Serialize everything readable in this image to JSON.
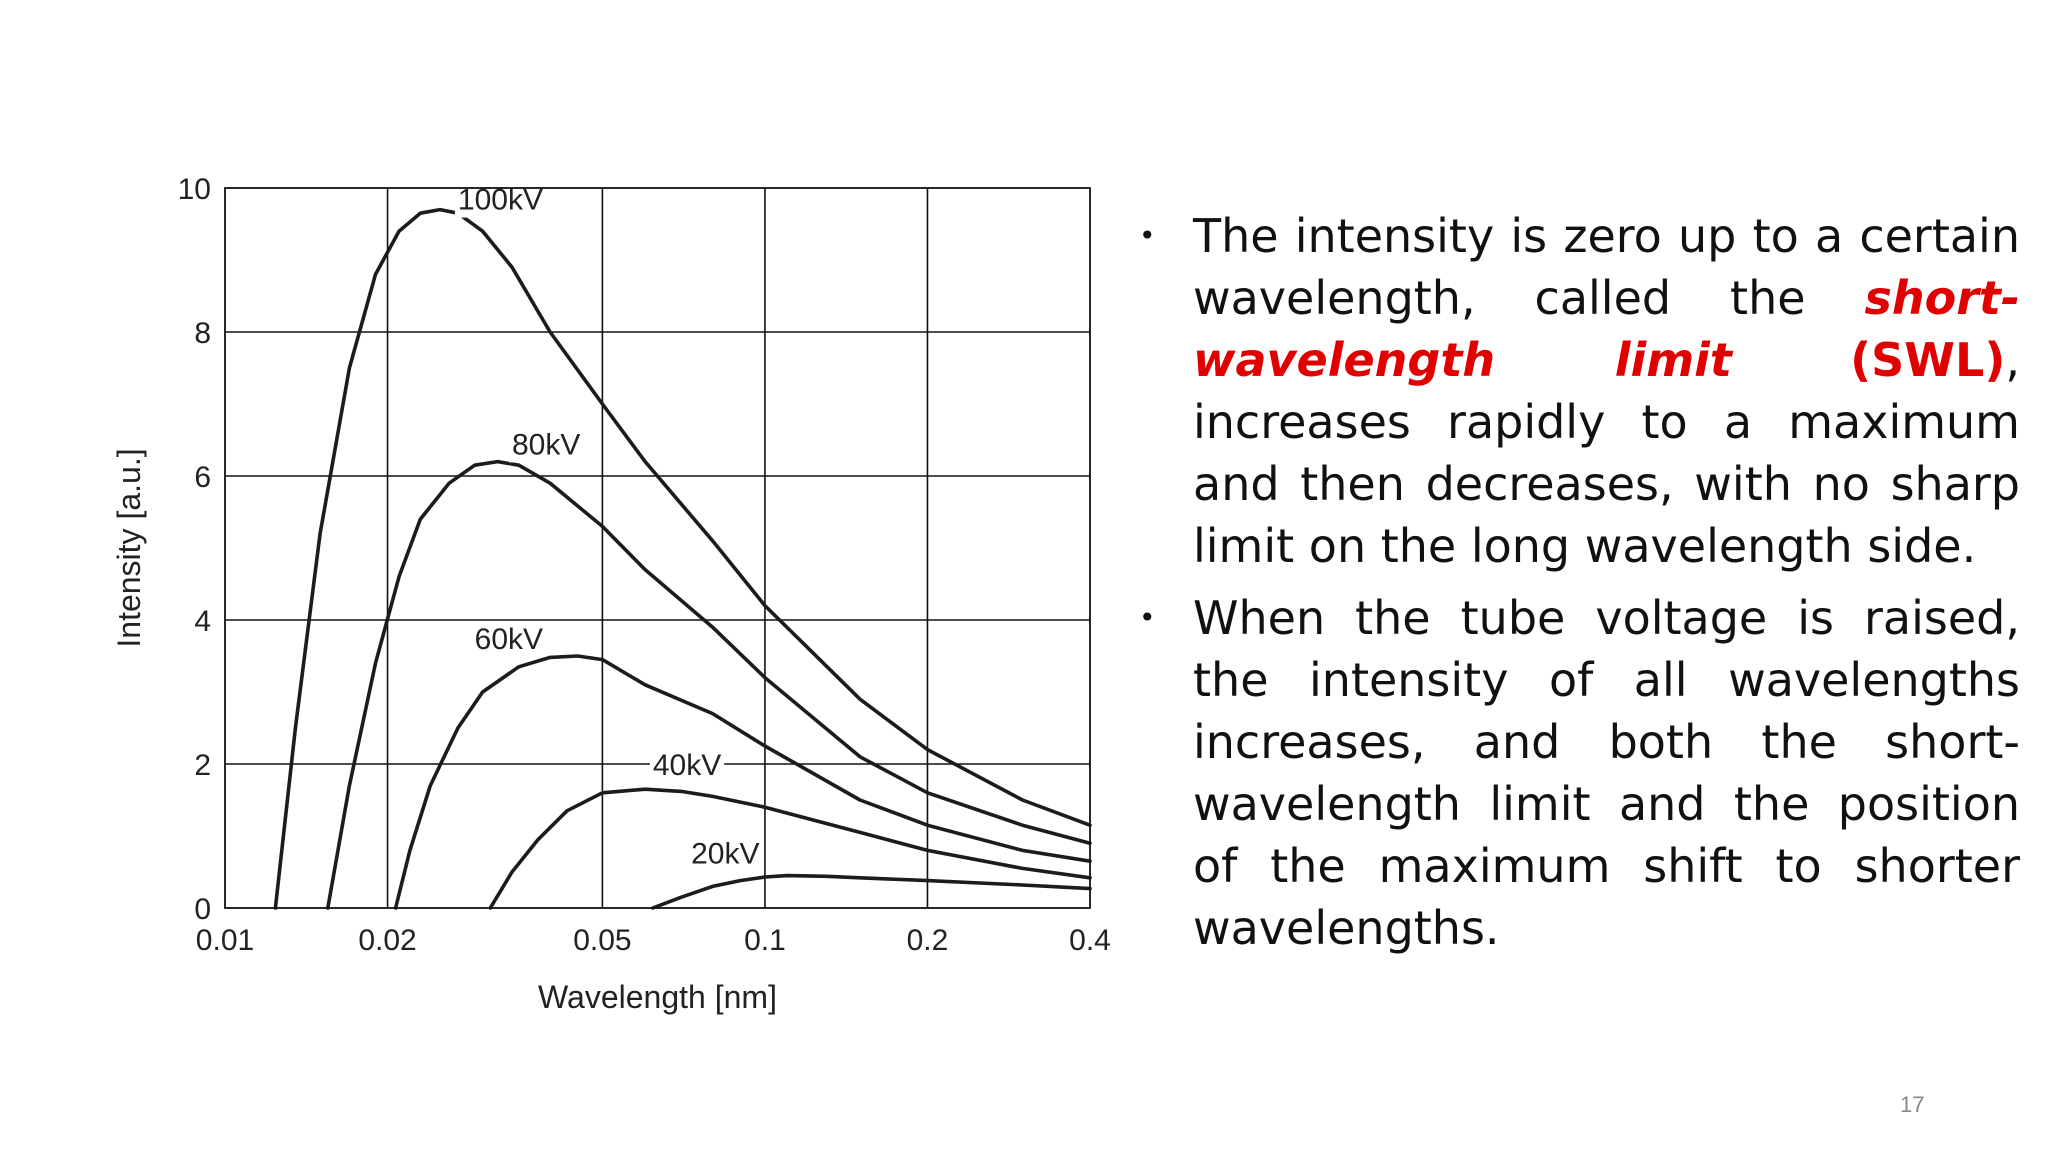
{
  "chart_data": {
    "type": "line",
    "xlabel": "Wavelength [nm]",
    "ylabel": "Intensity [a.u.]",
    "xscale": "log",
    "xlim": [
      0.01,
      0.4
    ],
    "ylim": [
      0,
      10
    ],
    "xticks": [
      {
        "value": 0.01,
        "label": "0.01"
      },
      {
        "value": 0.02,
        "label": "0.02"
      },
      {
        "value": 0.05,
        "label": "0.05"
      },
      {
        "value": 0.1,
        "label": "0.1"
      },
      {
        "value": 0.2,
        "label": "0.2"
      },
      {
        "value": 0.4,
        "label": "0.4"
      }
    ],
    "yticks": [
      {
        "value": 0,
        "label": "0"
      },
      {
        "value": 2,
        "label": "2"
      },
      {
        "value": 4,
        "label": "4"
      },
      {
        "value": 6,
        "label": "6"
      },
      {
        "value": 8,
        "label": "8"
      },
      {
        "value": 10,
        "label": "10"
      }
    ],
    "grid": true,
    "series": [
      {
        "name": "100kV",
        "label_at": [
          0.027,
          9.7
        ],
        "x": [
          0.0124,
          0.0135,
          0.015,
          0.017,
          0.019,
          0.021,
          0.023,
          0.025,
          0.027,
          0.03,
          0.034,
          0.04,
          0.05,
          0.06,
          0.08,
          0.1,
          0.15,
          0.2,
          0.3,
          0.4
        ],
        "y": [
          0,
          2.5,
          5.2,
          7.5,
          8.8,
          9.4,
          9.65,
          9.7,
          9.65,
          9.4,
          8.9,
          8.0,
          7.0,
          6.2,
          5.1,
          4.2,
          2.9,
          2.2,
          1.5,
          1.15
        ]
      },
      {
        "name": "80kV",
        "label_at": [
          0.034,
          6.3
        ],
        "x": [
          0.0155,
          0.017,
          0.019,
          0.021,
          0.023,
          0.026,
          0.029,
          0.032,
          0.035,
          0.04,
          0.05,
          0.06,
          0.08,
          0.1,
          0.15,
          0.2,
          0.3,
          0.4
        ],
        "y": [
          0,
          1.7,
          3.4,
          4.6,
          5.4,
          5.9,
          6.15,
          6.2,
          6.15,
          5.9,
          5.3,
          4.7,
          3.9,
          3.2,
          2.1,
          1.6,
          1.15,
          0.9
        ]
      },
      {
        "name": "60kV",
        "label_at": [
          0.029,
          3.6
        ],
        "x": [
          0.0207,
          0.022,
          0.024,
          0.027,
          0.03,
          0.035,
          0.04,
          0.045,
          0.05,
          0.06,
          0.08,
          0.1,
          0.15,
          0.2,
          0.3,
          0.4
        ],
        "y": [
          0,
          0.8,
          1.7,
          2.5,
          3.0,
          3.35,
          3.48,
          3.5,
          3.45,
          3.1,
          2.7,
          2.25,
          1.5,
          1.15,
          0.8,
          0.65
        ]
      },
      {
        "name": "40kV",
        "label_at": [
          0.062,
          1.85
        ],
        "x": [
          0.031,
          0.034,
          0.038,
          0.043,
          0.05,
          0.06,
          0.07,
          0.08,
          0.1,
          0.15,
          0.2,
          0.3,
          0.4
        ],
        "y": [
          0,
          0.5,
          0.95,
          1.35,
          1.6,
          1.65,
          1.62,
          1.55,
          1.4,
          1.05,
          0.8,
          0.55,
          0.42
        ]
      },
      {
        "name": "20kV",
        "label_at": [
          0.073,
          0.62
        ],
        "x": [
          0.062,
          0.07,
          0.08,
          0.09,
          0.1,
          0.11,
          0.13,
          0.15,
          0.2,
          0.3,
          0.4
        ],
        "y": [
          0,
          0.15,
          0.3,
          0.38,
          0.43,
          0.45,
          0.44,
          0.42,
          0.38,
          0.32,
          0.27
        ]
      }
    ]
  },
  "bullets": {
    "item1": {
      "text_before": "The intensity is zero up to a certain wavelength, called the ",
      "term": "short-wavelength limit",
      "space": " ",
      "abbr": "(SWL)",
      "text_after": ", increases rapidly to a maximum and then decreases, with no sharp limit on the long wavelength side."
    },
    "item2": {
      "text": "When the tube voltage is raised, the intensity of all wavelengths increases, and both the short-wavelength limit and the position of the maximum shift to shorter wavelengths."
    },
    "bullet_symbol": "•"
  },
  "page_number": "17"
}
